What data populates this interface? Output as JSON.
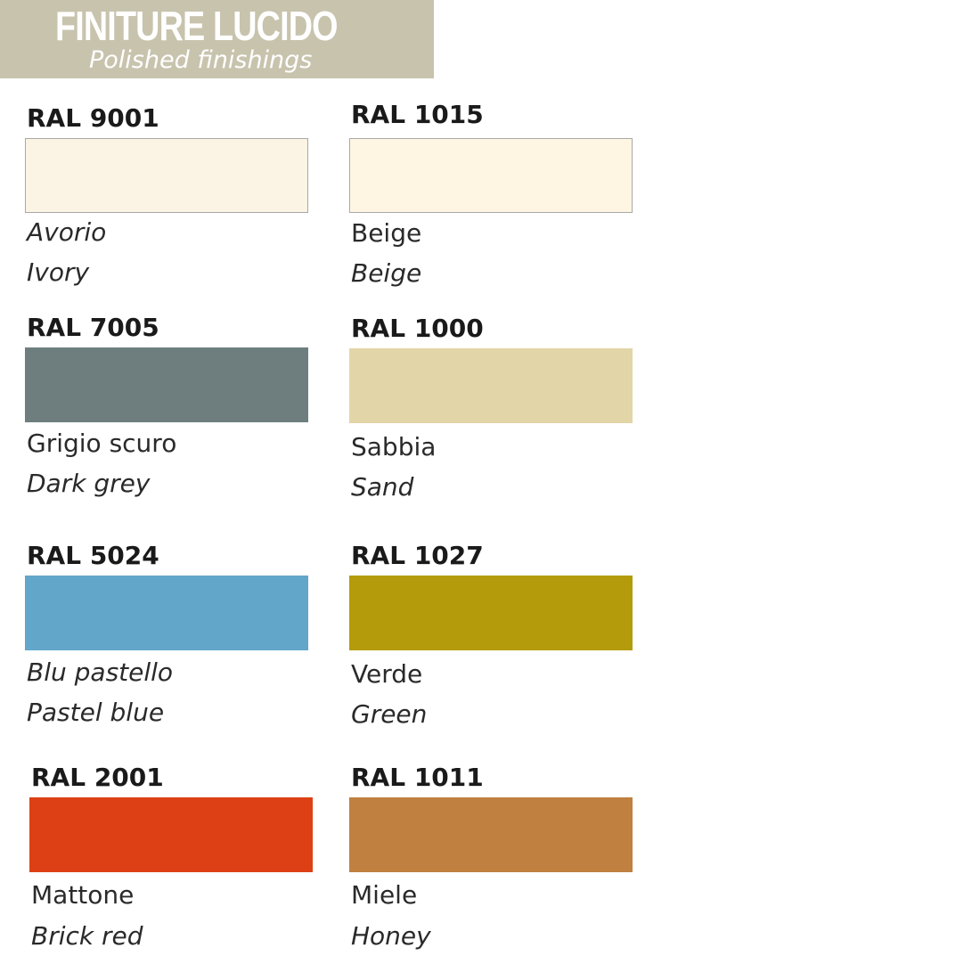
{
  "header": {
    "title": "FINITURE LUCIDO",
    "subtitle": "Polished finishings",
    "background": "#c8c3ad"
  },
  "colors": [
    {
      "code": "RAL 9001",
      "name_it": "Avorio",
      "name_en": "Ivory",
      "hex": "#fbf3e3"
    },
    {
      "code": "RAL 1015",
      "name_it": "Beige",
      "name_en": "Beige",
      "hex": "#fef6e2"
    },
    {
      "code": "RAL 7005",
      "name_it": "Grigio scuro",
      "name_en": "Dark grey",
      "hex": "#6e7e7e"
    },
    {
      "code": "RAL 1000",
      "name_it": "Sabbia",
      "name_en": "Sand",
      "hex": "#e2d5a8"
    },
    {
      "code": "RAL 5024",
      "name_it": "Blu pastello",
      "name_en": "Pastel blue",
      "hex": "#62a6c9"
    },
    {
      "code": "RAL 1027",
      "name_it": "Verde",
      "name_en": "Green",
      "hex": "#b49b0c"
    },
    {
      "code": "RAL 2001",
      "name_it": "Mattone",
      "name_en": "Brick red",
      "hex": "#dd4014"
    },
    {
      "code": "RAL 1011",
      "name_it": "Miele",
      "name_en": "Honey",
      "hex": "#c08040"
    }
  ]
}
